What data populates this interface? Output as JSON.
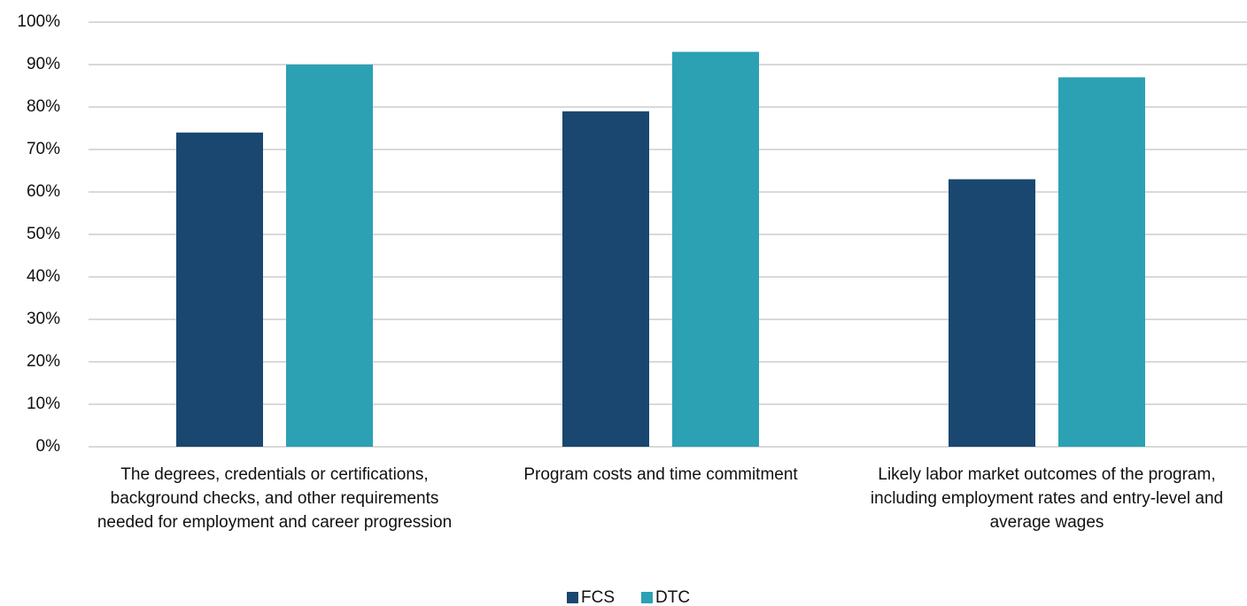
{
  "chart_data": {
    "type": "bar",
    "categories": [
      "The degrees, credentials or certifications, background checks, and other requirements needed for employment and career progression",
      "Program costs and time commitment",
      "Likely labor market outcomes of the program, including employment rates and entry-level and average wages"
    ],
    "series": [
      {
        "name": "FCS",
        "color": "#1a476f",
        "values": [
          74,
          79,
          63
        ]
      },
      {
        "name": "DTC",
        "color": "#2ca1b4",
        "values": [
          90,
          93,
          87
        ]
      }
    ],
    "ylim": [
      0,
      100
    ],
    "yticks": [
      {
        "value": 0,
        "label": "0%"
      },
      {
        "value": 10,
        "label": "10%"
      },
      {
        "value": 20,
        "label": "20%"
      },
      {
        "value": 30,
        "label": "30%"
      },
      {
        "value": 40,
        "label": "40%"
      },
      {
        "value": 50,
        "label": "50%"
      },
      {
        "value": 60,
        "label": "60%"
      },
      {
        "value": 70,
        "label": "70%"
      },
      {
        "value": 80,
        "label": "80%"
      },
      {
        "value": 90,
        "label": "90%"
      },
      {
        "value": 100,
        "label": "100%"
      }
    ],
    "grid": true,
    "legend": "bottom"
  }
}
